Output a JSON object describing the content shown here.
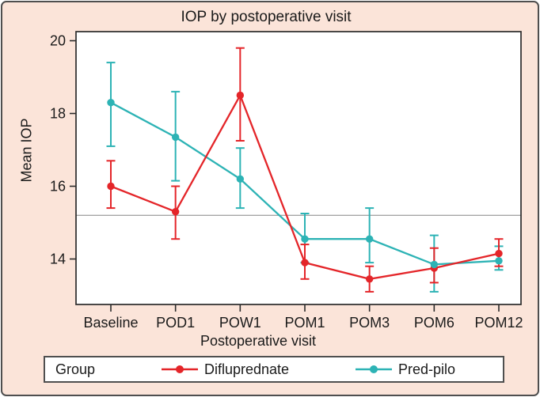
{
  "figure": {
    "background": "#fbe4d9",
    "plot_background": "#ffffff",
    "border_color": "#4f4f4f",
    "axis_color": "#2b2b2b",
    "text_color": "#1a1a1a"
  },
  "chart_data": {
    "type": "line",
    "title": "IOP by postoperative visit",
    "xlabel": "Postoperative visit",
    "ylabel": "Mean IOP",
    "categories": [
      "Baseline",
      "POD1",
      "POW1",
      "POM1",
      "POM3",
      "POM6",
      "POM12"
    ],
    "yticks": [
      14,
      16,
      18,
      20
    ],
    "ylim": [
      12.75,
      20.25
    ],
    "grid": false,
    "legend_position": "bottom",
    "error_bars": true,
    "reference_line": {
      "value": 15.2,
      "color": "#a6a6a6"
    },
    "series": [
      {
        "name": "Pred-pilo",
        "color": "#2db3b5",
        "values": [
          18.3,
          17.35,
          16.2,
          14.55,
          14.55,
          13.85,
          13.95
        ],
        "err_lo": [
          17.1,
          16.15,
          15.4,
          13.9,
          13.9,
          13.1,
          13.7
        ],
        "err_hi": [
          19.4,
          18.6,
          17.05,
          15.25,
          15.4,
          14.65,
          14.35
        ]
      },
      {
        "name": "Difluprednate",
        "color": "#e42529",
        "values": [
          16.0,
          15.3,
          18.5,
          13.9,
          13.45,
          13.75,
          14.15
        ],
        "err_lo": [
          15.4,
          14.55,
          17.25,
          13.45,
          13.1,
          13.35,
          13.8
        ],
        "err_hi": [
          16.7,
          16.0,
          19.8,
          14.4,
          13.8,
          14.3,
          14.55
        ]
      }
    ]
  },
  "legend": {
    "group_label": "Group",
    "items": [
      {
        "label": "Difluprednate",
        "color": "#e42529"
      },
      {
        "label": "Pred-pilo",
        "color": "#2db3b5"
      }
    ]
  }
}
